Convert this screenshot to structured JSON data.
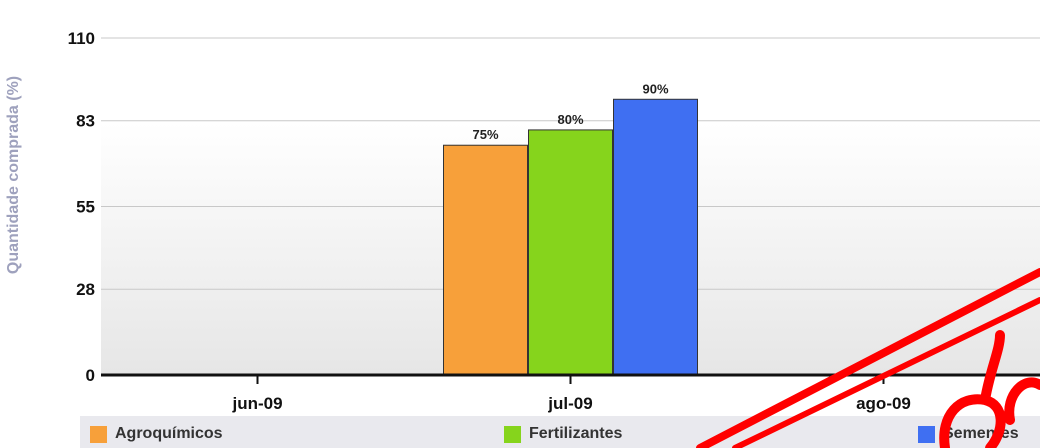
{
  "chart_data": {
    "type": "bar",
    "title": "",
    "xlabel": "",
    "ylabel": "Quantidade comprada (%)",
    "ylim": [
      0,
      110
    ],
    "yticks": [
      "0",
      "28",
      "55",
      "83",
      "110"
    ],
    "categories": [
      "jun-09",
      "jul-09",
      "ago-09"
    ],
    "series": [
      {
        "name": "Agroquímicos",
        "color": "#f7a03a",
        "values": [
          null,
          75,
          null
        ],
        "labels": [
          null,
          "75%",
          null
        ]
      },
      {
        "name": "Fertilizantes",
        "color": "#86d41c",
        "values": [
          null,
          80,
          null
        ],
        "labels": [
          null,
          "80%",
          null
        ]
      },
      {
        "name": "Sementes",
        "color": "#3f6ff2",
        "values": [
          null,
          90,
          null
        ],
        "labels": [
          null,
          "90%",
          null
        ]
      }
    ],
    "grid": true,
    "legend": "bottom"
  },
  "legend": {
    "items": [
      {
        "label": "Agroquímicos",
        "color": "#f7a03a"
      },
      {
        "label": "Fertilizantes",
        "color": "#86d41c"
      },
      {
        "label": "Sementes",
        "color": "#3f6ff2"
      }
    ]
  },
  "watermark": {
    "color": "#ff0000"
  }
}
